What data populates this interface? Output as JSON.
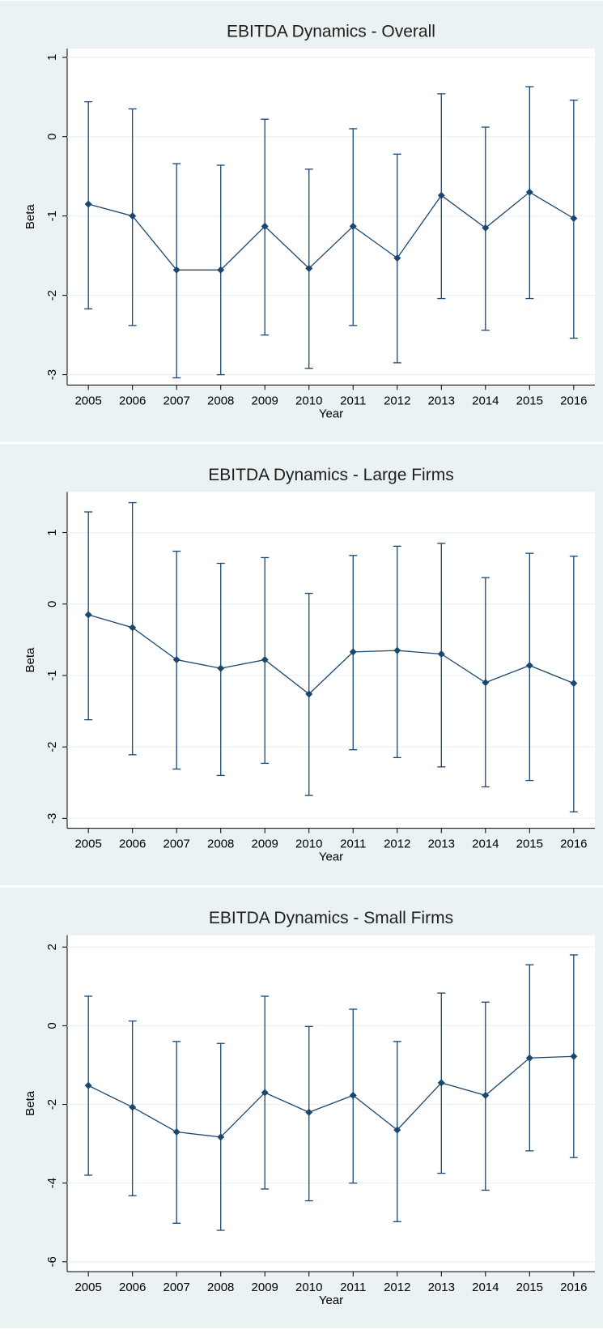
{
  "chart_data": [
    {
      "type": "errorbar",
      "title": "EBITDA Dynamics - Overall",
      "x_label": "Year",
      "y_label": "Beta",
      "x": [
        2005,
        2006,
        2007,
        2008,
        2009,
        2010,
        2011,
        2012,
        2013,
        2014,
        2015,
        2016
      ],
      "values": [
        -0.85,
        -1.0,
        -1.68,
        -1.68,
        -1.13,
        -1.66,
        -1.13,
        -1.53,
        -0.74,
        -1.15,
        -0.7,
        -1.03
      ],
      "ci_upper": [
        0.44,
        0.35,
        -0.34,
        -0.36,
        0.22,
        -0.41,
        0.1,
        -0.22,
        0.54,
        0.12,
        0.63,
        0.46
      ],
      "ci_lower": [
        -2.17,
        -2.38,
        -3.04,
        -3.0,
        -2.5,
        -2.92,
        -2.38,
        -2.85,
        -2.04,
        -2.44,
        -2.04,
        -2.54
      ],
      "color": "#1a476f",
      "xlim": [
        2004.52,
        2016.48
      ],
      "xticks": [
        2005,
        2006,
        2007,
        2008,
        2009,
        2010,
        2011,
        2012,
        2013,
        2014,
        2015,
        2016
      ],
      "ylim": [
        -3.13,
        1.11
      ],
      "yticks": [
        -3,
        -2,
        -1,
        0,
        1
      ],
      "grid": true
    },
    {
      "type": "errorbar",
      "title": "EBITDA Dynamics - Large Firms",
      "x_label": "Year",
      "y_label": "Beta",
      "x": [
        2005,
        2006,
        2007,
        2008,
        2009,
        2010,
        2011,
        2012,
        2013,
        2014,
        2015,
        2016
      ],
      "values": [
        -0.15,
        -0.33,
        -0.78,
        -0.9,
        -0.78,
        -1.26,
        -0.67,
        -0.65,
        -0.7,
        -1.1,
        -0.86,
        -1.11
      ],
      "ci_upper": [
        1.29,
        1.42,
        0.74,
        0.57,
        0.65,
        0.15,
        0.68,
        0.81,
        0.85,
        0.37,
        0.71,
        0.67
      ],
      "ci_lower": [
        -1.62,
        -2.11,
        -2.31,
        -2.4,
        -2.23,
        -2.68,
        -2.04,
        -2.15,
        -2.28,
        -2.56,
        -2.47,
        -2.91
      ],
      "color": "#1a476f",
      "xlim": [
        2004.52,
        2016.48
      ],
      "xticks": [
        2005,
        2006,
        2007,
        2008,
        2009,
        2010,
        2011,
        2012,
        2013,
        2014,
        2015,
        2016
      ],
      "ylim": [
        -3.14,
        1.57
      ],
      "yticks": [
        -3,
        -2,
        -1,
        0,
        1
      ],
      "grid": true
    },
    {
      "type": "errorbar",
      "title": "EBITDA Dynamics - Small Firms",
      "x_label": "Year",
      "y_label": "Beta",
      "x": [
        2005,
        2006,
        2007,
        2008,
        2009,
        2010,
        2011,
        2012,
        2013,
        2014,
        2015,
        2016
      ],
      "values": [
        -1.52,
        -2.07,
        -2.7,
        -2.83,
        -1.7,
        -2.2,
        -1.77,
        -2.65,
        -1.45,
        -1.77,
        -0.82,
        -0.78
      ],
      "ci_upper": [
        0.75,
        0.12,
        -0.4,
        -0.45,
        0.75,
        -0.02,
        0.42,
        -0.4,
        0.83,
        0.6,
        1.55,
        1.8
      ],
      "ci_lower": [
        -3.8,
        -4.32,
        -5.02,
        -5.2,
        -4.15,
        -4.45,
        -4.0,
        -4.98,
        -3.75,
        -4.18,
        -3.18,
        -3.35
      ],
      "color": "#1a476f",
      "xlim": [
        2004.52,
        2016.48
      ],
      "xticks": [
        2005,
        2006,
        2007,
        2008,
        2009,
        2010,
        2011,
        2012,
        2013,
        2014,
        2015,
        2016
      ],
      "ylim": [
        -6.25,
        2.3
      ],
      "yticks": [
        -6,
        -4,
        -2,
        0,
        2
      ],
      "grid": true
    }
  ]
}
